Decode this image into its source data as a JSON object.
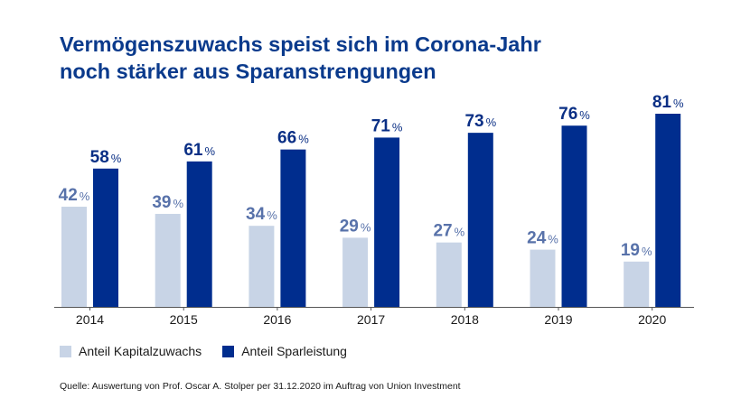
{
  "title_line1": "Vermögenszuwachs speist sich im Corona-Jahr",
  "title_line2": "noch stärker aus Sparanstrengungen",
  "source": "Quelle: Auswertung von Prof. Oscar A. Stolper per 31.12.2020 im Auftrag von Union Investment",
  "colors": {
    "title": "#0a3a8c",
    "kapital_bar": "#c8d4e6",
    "kapital_label": "#5872aa",
    "spar_bar": "#002d8e",
    "spar_label": "#0a2f85",
    "axis": "#555555"
  },
  "chart_data": {
    "type": "bar",
    "categories": [
      "2014",
      "2015",
      "2016",
      "2017",
      "2018",
      "2019",
      "2020"
    ],
    "series": [
      {
        "name": "Anteil Kapitalzuwachs",
        "values": [
          42,
          39,
          34,
          29,
          27,
          24,
          19
        ]
      },
      {
        "name": "Anteil Sparleistung",
        "values": [
          58,
          61,
          66,
          71,
          73,
          76,
          81
        ]
      }
    ],
    "unit_suffix": "%",
    "ylim": [
      0,
      81
    ],
    "grid": false,
    "legend_position": "bottom-left",
    "xlabel": "",
    "ylabel": ""
  }
}
